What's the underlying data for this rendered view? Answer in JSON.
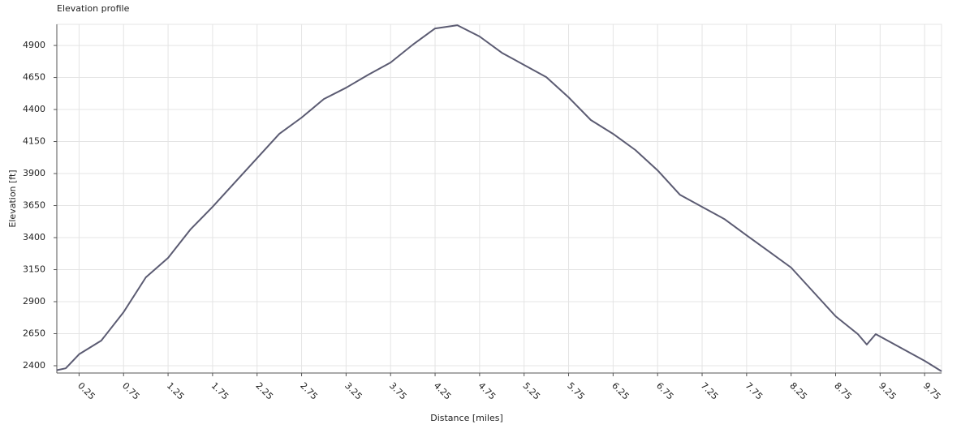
{
  "chart_data": {
    "type": "line",
    "title": "Elevation profile",
    "x_label": "Distance [miles]",
    "y_label": "Elevation [ft]",
    "x": [
      0,
      0.1,
      0.25,
      0.5,
      0.75,
      1.0,
      1.25,
      1.5,
      1.75,
      2.0,
      2.25,
      2.5,
      2.75,
      3.0,
      3.25,
      3.5,
      3.75,
      4.0,
      4.25,
      4.5,
      4.75,
      5.0,
      5.25,
      5.5,
      5.75,
      6.0,
      6.25,
      6.5,
      6.75,
      7.0,
      7.25,
      7.5,
      7.75,
      8.0,
      8.25,
      8.5,
      8.75,
      9.0,
      9.1,
      9.2,
      9.5,
      9.75,
      9.94
    ],
    "series": [
      {
        "name": "Elevation",
        "color": "#5b5b72",
        "values": [
          2365,
          2380,
          2489,
          2596,
          2818,
          3090,
          3242,
          3463,
          3640,
          3830,
          4020,
          4210,
          4337,
          4482,
          4570,
          4672,
          4767,
          4906,
          5033,
          5058,
          4970,
          4843,
          4748,
          4653,
          4495,
          4318,
          4210,
          4084,
          3925,
          3735,
          3640,
          3545,
          3418,
          3292,
          3166,
          2976,
          2786,
          2647,
          2565,
          2647,
          2533,
          2438,
          2356
        ]
      }
    ],
    "xlim": [
      0,
      9.94
    ],
    "ylim": [
      2343,
      5065
    ],
    "xticks": [
      0.25,
      0.75,
      1.25,
      1.75,
      2.25,
      2.75,
      3.25,
      3.75,
      4.25,
      4.75,
      5.25,
      5.75,
      6.25,
      6.75,
      7.25,
      7.75,
      8.25,
      8.75,
      9.25,
      9.75
    ],
    "yticks": [
      2400,
      2650,
      2900,
      3150,
      3400,
      3650,
      3900,
      4150,
      4400,
      4650,
      4900
    ],
    "grid": true
  }
}
